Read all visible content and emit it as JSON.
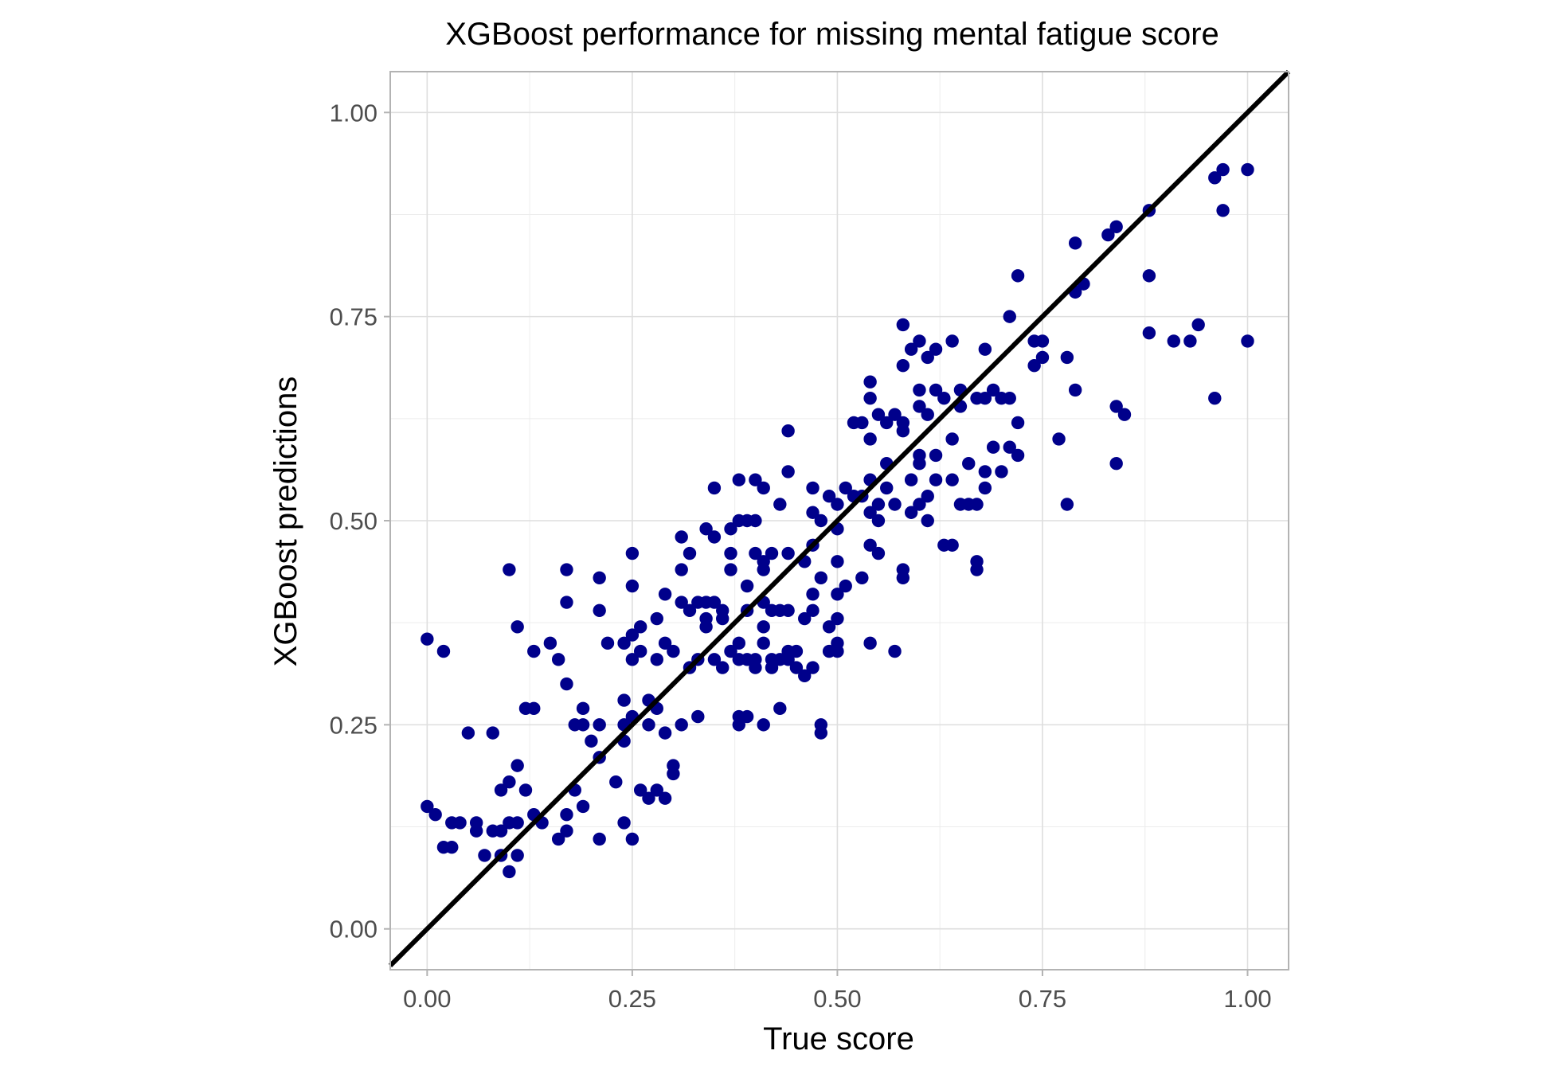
{
  "chart_data": {
    "type": "scatter",
    "title": "XGBoost performance for missing mental fatigue score",
    "xlabel": "True score",
    "ylabel": "XGBoost predictions",
    "xlim": [
      -0.045,
      1.05
    ],
    "ylim": [
      -0.05,
      1.05
    ],
    "xticks": [
      0.0,
      0.25,
      0.5,
      0.75,
      1.0
    ],
    "yticks": [
      0.0,
      0.25,
      0.5,
      0.75,
      1.0
    ],
    "xtick_labels": [
      "0.00",
      "0.25",
      "0.50",
      "0.75",
      "1.00"
    ],
    "ytick_labels": [
      "0.00",
      "0.25",
      "0.50",
      "0.75",
      "1.00"
    ],
    "grid": true,
    "point_color": "#00008b",
    "reference_line": {
      "type": "identity",
      "slope": 1,
      "intercept": 0,
      "color": "#000000"
    },
    "points": [
      [
        0.0,
        0.355
      ],
      [
        0.02,
        0.34
      ],
      [
        0.0,
        0.15
      ],
      [
        0.01,
        0.14
      ],
      [
        0.02,
        0.1
      ],
      [
        0.03,
        0.1
      ],
      [
        0.03,
        0.13
      ],
      [
        0.04,
        0.13
      ],
      [
        0.05,
        0.24
      ],
      [
        0.06,
        0.13
      ],
      [
        0.06,
        0.12
      ],
      [
        0.07,
        0.09
      ],
      [
        0.08,
        0.12
      ],
      [
        0.08,
        0.24
      ],
      [
        0.09,
        0.17
      ],
      [
        0.09,
        0.09
      ],
      [
        0.09,
        0.12
      ],
      [
        0.1,
        0.44
      ],
      [
        0.1,
        0.18
      ],
      [
        0.1,
        0.13
      ],
      [
        0.1,
        0.07
      ],
      [
        0.11,
        0.2
      ],
      [
        0.11,
        0.37
      ],
      [
        0.11,
        0.13
      ],
      [
        0.11,
        0.09
      ],
      [
        0.12,
        0.27
      ],
      [
        0.12,
        0.17
      ],
      [
        0.13,
        0.27
      ],
      [
        0.13,
        0.34
      ],
      [
        0.13,
        0.14
      ],
      [
        0.14,
        0.13
      ],
      [
        0.15,
        0.35
      ],
      [
        0.16,
        0.33
      ],
      [
        0.16,
        0.11
      ],
      [
        0.17,
        0.3
      ],
      [
        0.17,
        0.4
      ],
      [
        0.17,
        0.44
      ],
      [
        0.17,
        0.12
      ],
      [
        0.17,
        0.14
      ],
      [
        0.18,
        0.25
      ],
      [
        0.18,
        0.17
      ],
      [
        0.19,
        0.25
      ],
      [
        0.19,
        0.27
      ],
      [
        0.19,
        0.15
      ],
      [
        0.2,
        0.23
      ],
      [
        0.21,
        0.25
      ],
      [
        0.21,
        0.21
      ],
      [
        0.21,
        0.39
      ],
      [
        0.21,
        0.43
      ],
      [
        0.21,
        0.11
      ],
      [
        0.22,
        0.35
      ],
      [
        0.23,
        0.18
      ],
      [
        0.24,
        0.25
      ],
      [
        0.24,
        0.23
      ],
      [
        0.24,
        0.13
      ],
      [
        0.24,
        0.35
      ],
      [
        0.24,
        0.28
      ],
      [
        0.25,
        0.26
      ],
      [
        0.25,
        0.36
      ],
      [
        0.25,
        0.33
      ],
      [
        0.25,
        0.42
      ],
      [
        0.25,
        0.46
      ],
      [
        0.25,
        0.11
      ],
      [
        0.26,
        0.37
      ],
      [
        0.26,
        0.34
      ],
      [
        0.26,
        0.17
      ],
      [
        0.27,
        0.16
      ],
      [
        0.27,
        0.28
      ],
      [
        0.27,
        0.25
      ],
      [
        0.28,
        0.27
      ],
      [
        0.28,
        0.38
      ],
      [
        0.28,
        0.33
      ],
      [
        0.28,
        0.17
      ],
      [
        0.29,
        0.16
      ],
      [
        0.29,
        0.24
      ],
      [
        0.29,
        0.41
      ],
      [
        0.29,
        0.35
      ],
      [
        0.3,
        0.19
      ],
      [
        0.3,
        0.2
      ],
      [
        0.3,
        0.34
      ],
      [
        0.31,
        0.44
      ],
      [
        0.31,
        0.48
      ],
      [
        0.31,
        0.4
      ],
      [
        0.31,
        0.25
      ],
      [
        0.32,
        0.46
      ],
      [
        0.32,
        0.39
      ],
      [
        0.32,
        0.32
      ],
      [
        0.33,
        0.4
      ],
      [
        0.33,
        0.33
      ],
      [
        0.33,
        0.26
      ],
      [
        0.34,
        0.38
      ],
      [
        0.34,
        0.37
      ],
      [
        0.34,
        0.49
      ],
      [
        0.34,
        0.4
      ],
      [
        0.35,
        0.48
      ],
      [
        0.35,
        0.4
      ],
      [
        0.35,
        0.33
      ],
      [
        0.35,
        0.54
      ],
      [
        0.36,
        0.39
      ],
      [
        0.36,
        0.38
      ],
      [
        0.36,
        0.32
      ],
      [
        0.37,
        0.34
      ],
      [
        0.37,
        0.44
      ],
      [
        0.37,
        0.46
      ],
      [
        0.37,
        0.49
      ],
      [
        0.38,
        0.35
      ],
      [
        0.38,
        0.33
      ],
      [
        0.38,
        0.5
      ],
      [
        0.38,
        0.55
      ],
      [
        0.38,
        0.25
      ],
      [
        0.38,
        0.26
      ],
      [
        0.39,
        0.5
      ],
      [
        0.39,
        0.42
      ],
      [
        0.39,
        0.39
      ],
      [
        0.39,
        0.33
      ],
      [
        0.39,
        0.26
      ],
      [
        0.4,
        0.55
      ],
      [
        0.4,
        0.46
      ],
      [
        0.4,
        0.5
      ],
      [
        0.4,
        0.33
      ],
      [
        0.4,
        0.32
      ],
      [
        0.41,
        0.54
      ],
      [
        0.41,
        0.45
      ],
      [
        0.41,
        0.44
      ],
      [
        0.41,
        0.4
      ],
      [
        0.41,
        0.37
      ],
      [
        0.41,
        0.35
      ],
      [
        0.41,
        0.25
      ],
      [
        0.42,
        0.39
      ],
      [
        0.42,
        0.46
      ],
      [
        0.42,
        0.33
      ],
      [
        0.42,
        0.32
      ],
      [
        0.43,
        0.52
      ],
      [
        0.43,
        0.39
      ],
      [
        0.43,
        0.33
      ],
      [
        0.43,
        0.27
      ],
      [
        0.44,
        0.61
      ],
      [
        0.44,
        0.56
      ],
      [
        0.44,
        0.46
      ],
      [
        0.44,
        0.39
      ],
      [
        0.44,
        0.34
      ],
      [
        0.44,
        0.33
      ],
      [
        0.45,
        0.32
      ],
      [
        0.45,
        0.34
      ],
      [
        0.46,
        0.31
      ],
      [
        0.46,
        0.38
      ],
      [
        0.46,
        0.45
      ],
      [
        0.47,
        0.54
      ],
      [
        0.47,
        0.51
      ],
      [
        0.47,
        0.47
      ],
      [
        0.47,
        0.41
      ],
      [
        0.47,
        0.39
      ],
      [
        0.47,
        0.32
      ],
      [
        0.48,
        0.5
      ],
      [
        0.48,
        0.43
      ],
      [
        0.48,
        0.25
      ],
      [
        0.48,
        0.24
      ],
      [
        0.49,
        0.53
      ],
      [
        0.49,
        0.37
      ],
      [
        0.49,
        0.34
      ],
      [
        0.5,
        0.52
      ],
      [
        0.5,
        0.49
      ],
      [
        0.5,
        0.45
      ],
      [
        0.5,
        0.41
      ],
      [
        0.5,
        0.38
      ],
      [
        0.5,
        0.35
      ],
      [
        0.5,
        0.34
      ],
      [
        0.51,
        0.54
      ],
      [
        0.51,
        0.42
      ],
      [
        0.52,
        0.62
      ],
      [
        0.52,
        0.53
      ],
      [
        0.53,
        0.62
      ],
      [
        0.53,
        0.53
      ],
      [
        0.53,
        0.43
      ],
      [
        0.54,
        0.67
      ],
      [
        0.54,
        0.65
      ],
      [
        0.54,
        0.6
      ],
      [
        0.54,
        0.55
      ],
      [
        0.54,
        0.51
      ],
      [
        0.54,
        0.47
      ],
      [
        0.54,
        0.35
      ],
      [
        0.55,
        0.63
      ],
      [
        0.55,
        0.46
      ],
      [
        0.55,
        0.52
      ],
      [
        0.55,
        0.5
      ],
      [
        0.56,
        0.62
      ],
      [
        0.56,
        0.57
      ],
      [
        0.56,
        0.54
      ],
      [
        0.57,
        0.63
      ],
      [
        0.57,
        0.34
      ],
      [
        0.57,
        0.52
      ],
      [
        0.58,
        0.74
      ],
      [
        0.58,
        0.69
      ],
      [
        0.58,
        0.62
      ],
      [
        0.58,
        0.61
      ],
      [
        0.58,
        0.44
      ],
      [
        0.58,
        0.43
      ],
      [
        0.59,
        0.71
      ],
      [
        0.59,
        0.55
      ],
      [
        0.59,
        0.51
      ],
      [
        0.6,
        0.72
      ],
      [
        0.6,
        0.66
      ],
      [
        0.6,
        0.64
      ],
      [
        0.6,
        0.58
      ],
      [
        0.6,
        0.57
      ],
      [
        0.6,
        0.52
      ],
      [
        0.61,
        0.7
      ],
      [
        0.61,
        0.63
      ],
      [
        0.61,
        0.53
      ],
      [
        0.61,
        0.5
      ],
      [
        0.62,
        0.71
      ],
      [
        0.62,
        0.66
      ],
      [
        0.62,
        0.58
      ],
      [
        0.62,
        0.55
      ],
      [
        0.63,
        0.65
      ],
      [
        0.63,
        0.47
      ],
      [
        0.64,
        0.72
      ],
      [
        0.64,
        0.6
      ],
      [
        0.64,
        0.55
      ],
      [
        0.64,
        0.47
      ],
      [
        0.65,
        0.66
      ],
      [
        0.65,
        0.64
      ],
      [
        0.65,
        0.52
      ],
      [
        0.66,
        0.57
      ],
      [
        0.66,
        0.52
      ],
      [
        0.67,
        0.65
      ],
      [
        0.67,
        0.52
      ],
      [
        0.67,
        0.45
      ],
      [
        0.67,
        0.44
      ],
      [
        0.68,
        0.71
      ],
      [
        0.68,
        0.65
      ],
      [
        0.68,
        0.56
      ],
      [
        0.68,
        0.54
      ],
      [
        0.69,
        0.66
      ],
      [
        0.69,
        0.59
      ],
      [
        0.7,
        0.65
      ],
      [
        0.7,
        0.56
      ],
      [
        0.71,
        0.75
      ],
      [
        0.71,
        0.65
      ],
      [
        0.71,
        0.59
      ],
      [
        0.72,
        0.8
      ],
      [
        0.72,
        0.62
      ],
      [
        0.72,
        0.58
      ],
      [
        0.74,
        0.69
      ],
      [
        0.74,
        0.72
      ],
      [
        0.75,
        0.72
      ],
      [
        0.75,
        0.7
      ],
      [
        0.77,
        0.6
      ],
      [
        0.78,
        0.7
      ],
      [
        0.78,
        0.52
      ],
      [
        0.79,
        0.84
      ],
      [
        0.79,
        0.78
      ],
      [
        0.79,
        0.66
      ],
      [
        0.8,
        0.79
      ],
      [
        0.83,
        0.85
      ],
      [
        0.84,
        0.86
      ],
      [
        0.84,
        0.64
      ],
      [
        0.84,
        0.57
      ],
      [
        0.85,
        0.63
      ],
      [
        0.88,
        0.88
      ],
      [
        0.88,
        0.8
      ],
      [
        0.88,
        0.73
      ],
      [
        0.91,
        0.72
      ],
      [
        0.93,
        0.72
      ],
      [
        0.94,
        0.74
      ],
      [
        0.96,
        0.92
      ],
      [
        0.96,
        0.65
      ],
      [
        0.97,
        0.93
      ],
      [
        0.97,
        0.88
      ],
      [
        1.0,
        0.93
      ],
      [
        1.0,
        0.72
      ]
    ]
  }
}
